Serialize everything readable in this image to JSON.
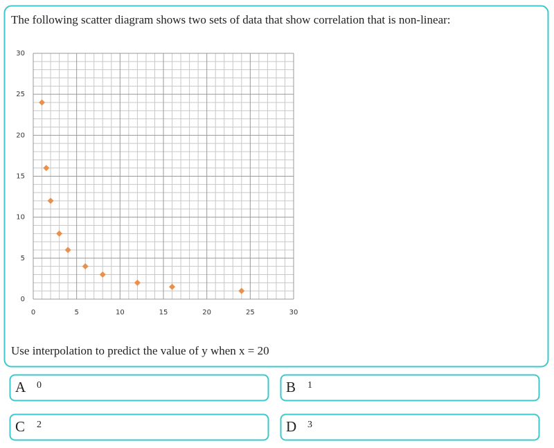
{
  "question": {
    "prompt": "The following scatter diagram shows two sets of data that show correlation that is non-linear:",
    "instruction": "Use interpolation to predict the value of y when x = 20"
  },
  "chart_data": {
    "type": "scatter",
    "x": [
      1,
      1.5,
      2,
      3,
      4,
      6,
      8,
      12,
      16,
      24
    ],
    "values": [
      24,
      16,
      12,
      8,
      6,
      4,
      3,
      2,
      1.5,
      1
    ],
    "color": "#e8914f",
    "xlim": [
      0,
      30
    ],
    "xticks": [
      0,
      5,
      10,
      15,
      20,
      25,
      30
    ],
    "ylim": [
      0,
      30
    ],
    "yticks": [
      0,
      5,
      10,
      15,
      20,
      25,
      30
    ],
    "grid": true
  },
  "options": [
    {
      "letter": "A",
      "value": 0
    },
    {
      "letter": "B",
      "value": 1
    },
    {
      "letter": "C",
      "value": 2
    },
    {
      "letter": "D",
      "value": 3
    }
  ]
}
